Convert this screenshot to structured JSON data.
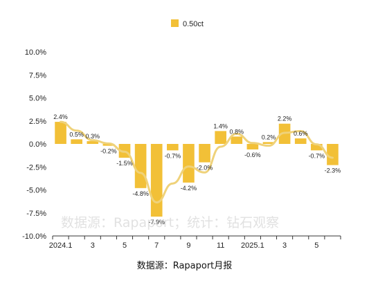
{
  "chart_data": {
    "type": "bar",
    "categories": [
      "2024.1",
      "2",
      "3",
      "4",
      "5",
      "6",
      "7",
      "8",
      "9",
      "10",
      "11",
      "12",
      "2025.1",
      "2",
      "3",
      "4",
      "5",
      "6"
    ],
    "x_tick_labels": [
      "2024.1",
      "",
      "3",
      "",
      "5",
      "",
      "7",
      "",
      "9",
      "",
      "11",
      "",
      "2025.1",
      "",
      "3",
      "",
      "5",
      ""
    ],
    "series": [
      {
        "name": "0.50ct",
        "values": [
          2.4,
          0.5,
          0.3,
          -0.2,
          -1.5,
          -4.8,
          -7.9,
          -0.7,
          -4.2,
          -2.0,
          1.4,
          0.8,
          -0.6,
          0.2,
          2.2,
          0.6,
          -0.7,
          -2.3
        ],
        "labels": [
          "2.4%",
          "0.5%",
          "0.3%",
          "-0.2%",
          "-1.5%",
          "-4.8%",
          "-7.9%",
          "-0.7%",
          "-4.2%",
          "-2.0%",
          "1.4%",
          "0.8%",
          "-0.6%",
          "0.2%",
          "2.2%",
          "0.6%",
          "-0.7%",
          "-2.3%"
        ]
      }
    ],
    "trendline": "moving-average",
    "y_ticks": [
      "10.0%",
      "7.5%",
      "5.0%",
      "2.5%",
      "0.0%",
      "-2.5%",
      "-5.0%",
      "-7.5%",
      "-10.0%"
    ],
    "ylim": [
      -10,
      10
    ],
    "legend_position": "top-center",
    "grid": false,
    "colors": {
      "bar": "#F2C037",
      "trend": "#EFD27A",
      "axis": "#333333"
    },
    "source": "数据源：Rapaport月报",
    "watermark": "数据源：Rapaport；统计：钻石观察"
  }
}
